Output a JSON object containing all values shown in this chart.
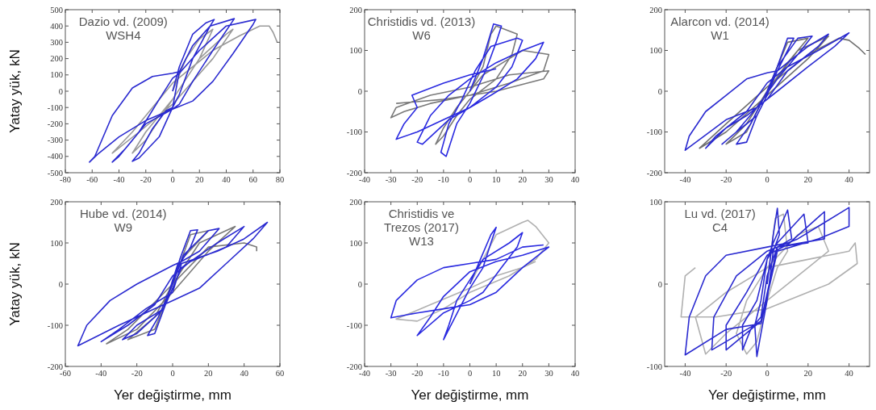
{
  "chart_data": [
    {
      "type": "line",
      "title": "Dazio vd. (2009)\nWSH4",
      "ylabel": "Yatay yük, kN",
      "xlim": [
        -80,
        80
      ],
      "ylim": [
        -500,
        500
      ],
      "xticks": [
        -80,
        -60,
        -40,
        -20,
        0,
        20,
        40,
        60,
        80
      ],
      "yticks": [
        -500,
        -400,
        -300,
        -200,
        -100,
        0,
        100,
        200,
        300,
        400,
        500
      ],
      "series": [
        {
          "color": "#9a9a9a",
          "x": [
            0,
            10,
            20,
            30,
            20,
            0,
            -20,
            -30,
            -20,
            0,
            20,
            40,
            45,
            30,
            0,
            -25,
            -45,
            -30,
            0,
            30,
            50,
            60,
            65,
            72,
            75,
            78
          ],
          "values": [
            0,
            200,
            320,
            380,
            200,
            -50,
            -250,
            -380,
            -300,
            -50,
            200,
            350,
            380,
            200,
            -80,
            -250,
            -380,
            -250,
            50,
            250,
            340,
            380,
            400,
            400,
            360,
            300
          ]
        },
        {
          "color": "#2a2ad0",
          "x": [
            0,
            5,
            15,
            25,
            31,
            28,
            15,
            5,
            0,
            -5,
            -15,
            -25,
            -30,
            -25,
            -10,
            0,
            5,
            15,
            28,
            46,
            44,
            30,
            15,
            5,
            0,
            -20,
            -35,
            -45,
            -40,
            -25,
            -10,
            0,
            5,
            20,
            40,
            62,
            60,
            45,
            30,
            15,
            0,
            -20,
            -40,
            -55,
            -62,
            -58,
            -45,
            -30,
            -15,
            0,
            5
          ],
          "values": [
            0,
            150,
            350,
            420,
            440,
            400,
            200,
            -20,
            -100,
            -120,
            -230,
            -380,
            -430,
            -410,
            -280,
            -100,
            120,
            280,
            400,
            445,
            420,
            250,
            60,
            -80,
            -110,
            -200,
            -350,
            -435,
            -400,
            -250,
            -50,
            80,
            110,
            250,
            400,
            440,
            410,
            230,
            60,
            -60,
            -110,
            -180,
            -280,
            -380,
            -435,
            -400,
            -150,
            20,
            90,
            110,
            120
          ]
        }
      ]
    },
    {
      "type": "line",
      "title": "Christidis vd. (2013)\nW6",
      "xlim": [
        -40,
        40
      ],
      "ylim": [
        -200,
        200
      ],
      "xticks": [
        -40,
        -30,
        -20,
        -10,
        0,
        10,
        20,
        30,
        40
      ],
      "yticks": [
        -200,
        -100,
        0,
        100,
        200
      ],
      "series": [
        {
          "color": "#7a7a7a",
          "x": [
            0,
            5,
            8,
            10,
            18,
            16,
            10,
            0,
            -5,
            -10,
            -13,
            -10,
            -5,
            5,
            15,
            20,
            30,
            28,
            15,
            0,
            -15,
            -25,
            -30,
            -28,
            -15,
            0,
            15,
            30,
            28,
            10,
            -10,
            -28
          ],
          "values": [
            0,
            60,
            140,
            160,
            140,
            90,
            30,
            -20,
            -60,
            -110,
            -130,
            -90,
            -40,
            40,
            80,
            100,
            90,
            50,
            20,
            -10,
            -30,
            -50,
            -65,
            -40,
            -10,
            10,
            40,
            50,
            30,
            0,
            -20,
            -30
          ]
        },
        {
          "color": "#2a2ae0",
          "x": [
            0,
            5,
            9,
            12,
            10,
            6,
            0,
            -5,
            -9,
            -11,
            -8,
            -3,
            2,
            8,
            18,
            20,
            16,
            10,
            0,
            -8,
            -18,
            -20,
            -15,
            -8,
            0,
            10,
            20,
            28,
            25,
            18,
            8,
            0,
            -10,
            -20,
            -28,
            -25,
            -20,
            -22,
            -10,
            0,
            10
          ],
          "values": [
            0,
            80,
            165,
            160,
            120,
            50,
            -30,
            -80,
            -160,
            -150,
            -80,
            -20,
            50,
            110,
            130,
            125,
            60,
            10,
            -40,
            -70,
            -130,
            -125,
            -60,
            -10,
            30,
            70,
            100,
            120,
            80,
            30,
            -10,
            -40,
            -70,
            -100,
            -118,
            -80,
            -40,
            -10,
            20,
            40,
            55
          ]
        }
      ]
    },
    {
      "type": "line",
      "title": "Alarcon vd. (2014)\nW1",
      "xlim": [
        -50,
        50
      ],
      "ylim": [
        -200,
        200
      ],
      "xticks": [
        -40,
        -20,
        0,
        20,
        40
      ],
      "yticks": [
        -200,
        -100,
        0,
        100,
        200
      ],
      "series": [
        {
          "color": "#707070",
          "x": [
            0,
            10,
            20,
            10,
            0,
            -10,
            -20,
            -10,
            0,
            15,
            30,
            20,
            0,
            -20,
            -33,
            -20,
            0,
            20,
            35,
            40,
            45,
            48
          ],
          "values": [
            0,
            120,
            130,
            70,
            0,
            -100,
            -130,
            -80,
            0,
            100,
            135,
            80,
            -10,
            -100,
            -140,
            -80,
            10,
            90,
            130,
            125,
            105,
            90
          ]
        },
        {
          "color": "#2a2ad0",
          "x": [
            0,
            5,
            10,
            13,
            8,
            3,
            0,
            -5,
            -10,
            -15,
            -8,
            0,
            5,
            15,
            22,
            15,
            5,
            -5,
            -15,
            -22,
            -15,
            -5,
            0,
            5,
            20,
            30,
            25,
            10,
            0,
            -10,
            -20,
            -30,
            -25,
            -10,
            0,
            10,
            25,
            40,
            33,
            20,
            5,
            -5,
            -20,
            -40,
            -38,
            -30,
            -20,
            -10,
            0,
            5
          ],
          "values": [
            0,
            60,
            130,
            130,
            80,
            30,
            -10,
            -60,
            -125,
            -130,
            -80,
            0,
            60,
            130,
            135,
            90,
            30,
            -40,
            -100,
            -130,
            -100,
            -60,
            -10,
            50,
            110,
            140,
            110,
            50,
            -20,
            -60,
            -90,
            -140,
            -110,
            -50,
            20,
            60,
            100,
            143,
            110,
            60,
            0,
            -40,
            -70,
            -145,
            -110,
            -50,
            -10,
            30,
            45,
            50
          ]
        }
      ]
    },
    {
      "type": "line",
      "title": "Hube vd. (2014)\nW9",
      "ylabel": "Yatay yük, kN",
      "xlabel": "Yer değiştirme, mm",
      "xlim": [
        -60,
        60
      ],
      "ylim": [
        -200,
        200
      ],
      "xticks": [
        -60,
        -40,
        -20,
        0,
        20,
        40,
        60
      ],
      "yticks": [
        -200,
        -100,
        0,
        100,
        200
      ],
      "series": [
        {
          "color": "#7a7a7a",
          "x": [
            0,
            10,
            20,
            5,
            0,
            -10,
            -25,
            -10,
            0,
            15,
            35,
            20,
            0,
            -20,
            -37,
            -25,
            0,
            20,
            40,
            47,
            47
          ],
          "values": [
            0,
            120,
            130,
            60,
            0,
            -110,
            -135,
            -80,
            0,
            100,
            140,
            80,
            -20,
            -110,
            -145,
            -110,
            0,
            90,
            100,
            90,
            80
          ]
        },
        {
          "color": "#2a2ad0",
          "x": [
            0,
            4,
            10,
            14,
            10,
            4,
            0,
            -4,
            -10,
            -14,
            -8,
            0,
            6,
            20,
            26,
            15,
            3,
            -5,
            -20,
            -28,
            -20,
            -5,
            5,
            25,
            40,
            30,
            10,
            0,
            -10,
            -25,
            -40,
            -30,
            -15,
            0,
            5,
            25,
            40,
            53,
            45,
            30,
            15,
            0,
            -10,
            -30,
            -53,
            -48,
            -35,
            -20,
            0,
            5
          ],
          "values": [
            0,
            60,
            130,
            132,
            90,
            50,
            10,
            -50,
            -120,
            -125,
            -80,
            0,
            70,
            130,
            135,
            80,
            50,
            -60,
            -120,
            -135,
            -100,
            -60,
            40,
            100,
            140,
            90,
            55,
            20,
            -50,
            -100,
            -140,
            -110,
            -60,
            -20,
            50,
            80,
            110,
            150,
            110,
            50,
            -10,
            -40,
            -60,
            -100,
            -150,
            -100,
            -40,
            0,
            45,
            55
          ]
        }
      ]
    },
    {
      "type": "line",
      "title": "Christidis ve\nTrezos (2017)\nW13",
      "xlabel": "Yer değiştirme, mm",
      "xlim": [
        -40,
        40
      ],
      "ylim": [
        -200,
        200
      ],
      "xticks": [
        -40,
        -30,
        -20,
        -10,
        0,
        10,
        20,
        30,
        40
      ],
      "yticks": [
        -200,
        -100,
        0,
        100,
        200
      ],
      "series": [
        {
          "color": "#b0b0b0",
          "x": [
            0,
            5,
            10,
            20,
            22,
            25,
            30,
            25,
            15,
            0,
            -10,
            -20,
            -28,
            -15,
            0,
            10,
            20,
            25
          ],
          "values": [
            0,
            60,
            120,
            150,
            155,
            140,
            100,
            60,
            20,
            -20,
            -60,
            -90,
            -85,
            -50,
            -10,
            20,
            40,
            55
          ]
        },
        {
          "color": "#2a2ae0",
          "x": [
            0,
            4,
            8,
            10,
            8,
            5,
            0,
            -4,
            -8,
            -10,
            -8,
            -5,
            0,
            5,
            15,
            20,
            18,
            12,
            5,
            0,
            -10,
            -20,
            -15,
            -10,
            0,
            10,
            20,
            30,
            28,
            20,
            10,
            0,
            -10,
            -20,
            -30,
            -28,
            -20,
            -10,
            0,
            10,
            20,
            28
          ],
          "values": [
            0,
            60,
            120,
            138,
            100,
            40,
            -10,
            -60,
            -110,
            -135,
            -100,
            -40,
            10,
            60,
            100,
            125,
            90,
            40,
            -20,
            -40,
            -70,
            -125,
            -80,
            -30,
            30,
            55,
            70,
            90,
            80,
            40,
            -20,
            -50,
            -60,
            -70,
            -82,
            -40,
            10,
            40,
            50,
            60,
            90,
            95
          ]
        }
      ]
    },
    {
      "type": "line",
      "title": "Lu vd. (2017)\nC4",
      "xlabel": "Yer değiştirme, mm",
      "xlim": [
        -50,
        50
      ],
      "ylim": [
        -100,
        100
      ],
      "xticks": [
        -40,
        -20,
        0,
        20,
        40
      ],
      "yticks": [
        -100,
        0,
        100
      ],
      "series": [
        {
          "color": "#b0b0b0",
          "x": [
            0,
            4,
            8,
            10,
            5,
            0,
            -5,
            -10,
            -15,
            -10,
            0,
            15,
            25,
            30,
            20,
            0,
            -20,
            -30,
            -35,
            -20,
            0,
            20,
            40,
            43,
            44,
            30,
            0,
            -25,
            -42,
            -40,
            -35
          ],
          "values": [
            0,
            80,
            85,
            40,
            20,
            -20,
            -70,
            -85,
            -60,
            -20,
            20,
            60,
            70,
            40,
            20,
            -20,
            -60,
            -85,
            -40,
            -10,
            20,
            30,
            40,
            50,
            25,
            0,
            -30,
            -40,
            -40,
            10,
            20
          ]
        },
        {
          "color": "#2a2ad0",
          "x": [
            0,
            3,
            5,
            6,
            3,
            0,
            -3,
            -5,
            -6,
            -3,
            0,
            3,
            10,
            12,
            5,
            0,
            -3,
            -8,
            -12,
            -12,
            -5,
            0,
            5,
            18,
            20,
            5,
            -3,
            -20,
            -20,
            -10,
            0,
            10,
            28,
            28,
            5,
            -3,
            -27,
            -26,
            -15,
            0,
            15,
            40,
            40,
            25,
            5,
            -3,
            -20,
            -40,
            -38,
            -30,
            -20,
            0,
            10
          ],
          "values": [
            0,
            60,
            92,
            60,
            40,
            -20,
            -60,
            -88,
            -50,
            -20,
            30,
            50,
            90,
            55,
            45,
            10,
            -40,
            -55,
            -80,
            -50,
            -20,
            30,
            50,
            85,
            50,
            45,
            -45,
            -80,
            -50,
            -10,
            35,
            48,
            88,
            55,
            45,
            -45,
            -80,
            -40,
            10,
            40,
            55,
            93,
            70,
            55,
            40,
            -48,
            -55,
            -86,
            -40,
            10,
            35,
            45,
            50
          ]
        }
      ]
    }
  ]
}
